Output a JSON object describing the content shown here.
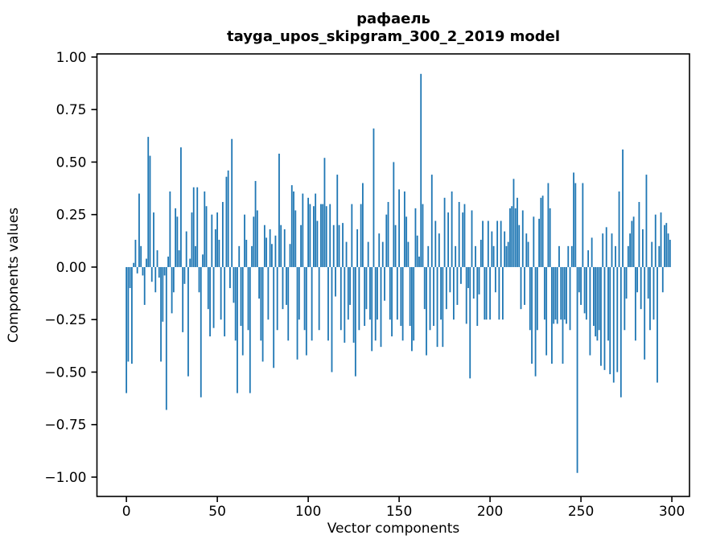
{
  "chart_data": {
    "type": "bar",
    "title_line1": "рафаель",
    "title_line2": "tayga_upos_skipgram_300_2_2019 model",
    "title": "рафаель\ntayga_upos_skipgram_300_2_2019 model",
    "xlabel": "Vector components",
    "ylabel": "Components values",
    "n_components": 300,
    "bar_color": "#1f77b4",
    "spine_color": "#000000",
    "grid": false,
    "legend": null,
    "x_ticks": [
      0,
      50,
      100,
      150,
      200,
      250,
      300
    ],
    "x_tick_labels": [
      "0",
      "50",
      "100",
      "150",
      "200",
      "250",
      "300"
    ],
    "y_ticks": [
      -1.0,
      -0.75,
      -0.5,
      -0.25,
      0.0,
      0.25,
      0.5,
      0.75,
      1.0
    ],
    "y_tick_labels": [
      "−1.00",
      "−0.75",
      "−0.50",
      "−0.25",
      "0.00",
      "0.25",
      "0.50",
      "0.75",
      "1.00"
    ],
    "xlim": [
      -16.2,
      309.7
    ],
    "ylim": [
      -1.092,
      1.015
    ],
    "values": [
      -0.6,
      -0.45,
      -0.1,
      -0.46,
      0.02,
      0.13,
      -0.03,
      0.35,
      0.1,
      -0.04,
      -0.18,
      0.04,
      0.62,
      0.53,
      -0.07,
      0.26,
      -0.12,
      0.08,
      -0.05,
      -0.45,
      -0.26,
      -0.04,
      -0.68,
      0.05,
      0.36,
      -0.22,
      -0.12,
      0.28,
      0.24,
      0.08,
      0.57,
      -0.31,
      -0.08,
      0.17,
      -0.52,
      0.04,
      0.26,
      0.38,
      0.1,
      0.38,
      -0.12,
      -0.62,
      0.06,
      0.36,
      0.29,
      -0.2,
      -0.33,
      0.25,
      -0.29,
      0.18,
      0.26,
      0.13,
      -0.25,
      0.31,
      -0.33,
      0.43,
      0.46,
      -0.1,
      0.61,
      -0.17,
      -0.35,
      -0.6,
      0.1,
      -0.28,
      -0.42,
      0.25,
      0.13,
      -0.3,
      -0.6,
      0.1,
      0.24,
      0.41,
      0.27,
      -0.15,
      -0.35,
      -0.45,
      0.2,
      0.14,
      -0.25,
      0.18,
      0.11,
      -0.48,
      0.15,
      -0.3,
      0.54,
      0.2,
      -0.2,
      0.18,
      -0.18,
      -0.35,
      0.11,
      0.39,
      0.36,
      0.27,
      -0.44,
      -0.25,
      0.2,
      0.35,
      -0.3,
      -0.42,
      0.33,
      0.3,
      -0.35,
      0.29,
      0.35,
      0.22,
      -0.3,
      0.3,
      0.3,
      0.52,
      0.29,
      -0.35,
      0.3,
      -0.5,
      0.2,
      -0.14,
      0.44,
      0.2,
      -0.3,
      0.21,
      -0.36,
      0.12,
      -0.25,
      -0.18,
      0.3,
      -0.36,
      -0.52,
      0.18,
      -0.3,
      0.3,
      0.4,
      -0.28,
      -0.2,
      0.12,
      -0.25,
      -0.4,
      0.66,
      -0.35,
      -0.25,
      0.16,
      -0.38,
      0.12,
      -0.16,
      0.25,
      0.31,
      -0.25,
      -0.33,
      0.5,
      0.2,
      -0.25,
      0.37,
      -0.28,
      -0.35,
      0.36,
      0.24,
      0.12,
      -0.28,
      -0.4,
      -0.35,
      0.28,
      0.15,
      0.05,
      0.92,
      0.3,
      -0.2,
      -0.42,
      0.1,
      -0.3,
      0.44,
      -0.28,
      0.22,
      -0.38,
      0.16,
      -0.25,
      -0.38,
      0.33,
      -0.2,
      0.26,
      -0.12,
      0.36,
      -0.25,
      0.1,
      -0.18,
      0.31,
      -0.08,
      0.26,
      0.3,
      -0.27,
      -0.1,
      -0.53,
      0.27,
      -0.15,
      0.1,
      -0.28,
      -0.13,
      0.13,
      0.22,
      -0.25,
      -0.25,
      0.22,
      -0.25,
      0.17,
      0.1,
      -0.12,
      0.22,
      -0.25,
      0.22,
      -0.25,
      0.17,
      0.1,
      0.12,
      0.28,
      0.29,
      0.42,
      0.28,
      0.33,
      0.2,
      -0.2,
      0.27,
      -0.18,
      0.16,
      0.12,
      -0.3,
      -0.46,
      0.24,
      -0.52,
      -0.3,
      0.23,
      0.33,
      0.34,
      -0.25,
      -0.42,
      0.4,
      0.28,
      -0.46,
      -0.27,
      -0.25,
      -0.27,
      0.1,
      -0.25,
      -0.46,
      -0.25,
      -0.27,
      0.1,
      -0.3,
      0.1,
      0.45,
      0.4,
      -0.98,
      -0.12,
      -0.18,
      0.4,
      -0.22,
      -0.25,
      0.08,
      -0.42,
      0.14,
      -0.28,
      -0.33,
      -0.35,
      -0.3,
      -0.47,
      0.16,
      -0.49,
      0.19,
      -0.35,
      -0.51,
      0.16,
      -0.55,
      0.1,
      -0.5,
      0.36,
      -0.62,
      0.56,
      -0.3,
      -0.15,
      0.1,
      0.16,
      0.22,
      0.24,
      -0.35,
      -0.12,
      0.31,
      -0.2,
      0.18,
      -0.44,
      0.44,
      -0.15,
      -0.3,
      0.12,
      -0.25,
      0.25,
      -0.55,
      0.1,
      0.26,
      -0.12,
      0.2,
      0.21,
      0.16,
      0.13
    ]
  }
}
